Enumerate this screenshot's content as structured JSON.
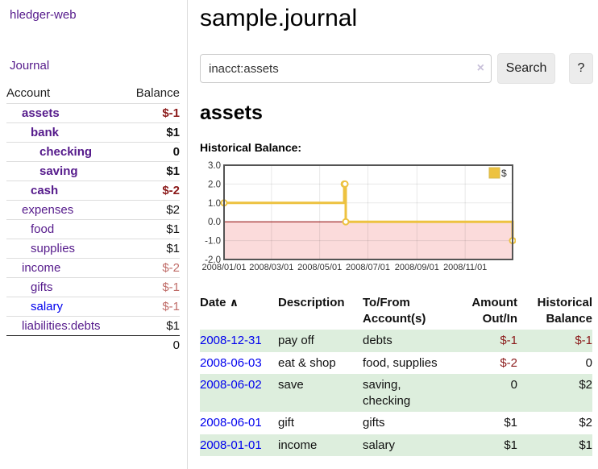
{
  "app": {
    "title": "hledger-web",
    "nav_journal": "Journal"
  },
  "sidebar": {
    "columns": {
      "account": "Account",
      "balance": "Balance"
    },
    "accounts": [
      {
        "name": "assets",
        "indent": 1,
        "balance": "$-1",
        "bold": true,
        "negative": true,
        "link": "visited"
      },
      {
        "name": "bank",
        "indent": 2,
        "balance": "$1",
        "bold": true,
        "negative": false,
        "link": "visited"
      },
      {
        "name": "checking",
        "indent": 3,
        "balance": "0",
        "bold": true,
        "negative": false,
        "link": "visited"
      },
      {
        "name": "saving",
        "indent": 3,
        "balance": "$1",
        "bold": true,
        "negative": false,
        "link": "visited"
      },
      {
        "name": "cash",
        "indent": 2,
        "balance": "$-2",
        "bold": true,
        "negative": true,
        "link": "visited"
      },
      {
        "name": "expenses",
        "indent": 1,
        "balance": "$2",
        "bold": false,
        "negative": false,
        "link": "visited"
      },
      {
        "name": "food",
        "indent": 2,
        "balance": "$1",
        "bold": false,
        "negative": false,
        "link": "visited"
      },
      {
        "name": "supplies",
        "indent": 2,
        "balance": "$1",
        "bold": false,
        "negative": false,
        "link": "visited"
      },
      {
        "name": "income",
        "indent": 1,
        "balance": "$-2",
        "bold": false,
        "negative": true,
        "link": "visited"
      },
      {
        "name": "gifts",
        "indent": 2,
        "balance": "$-1",
        "bold": false,
        "negative": true,
        "link": "visited"
      },
      {
        "name": "salary",
        "indent": 2,
        "balance": "$-1",
        "bold": false,
        "negative": true,
        "link": "unvisited"
      },
      {
        "name": "liabilities:debts",
        "indent": 1,
        "balance": "$1",
        "bold": false,
        "negative": false,
        "link": "visited"
      }
    ],
    "total": "0"
  },
  "header": {
    "title": "sample.journal"
  },
  "search": {
    "value": "inacct:assets",
    "clear_icon": "×",
    "search_button": "Search",
    "help_button": "?"
  },
  "account_page": {
    "heading": "assets",
    "chart_label": "Historical Balance:"
  },
  "chart_data": {
    "type": "line",
    "style": "step",
    "title": "Historical Balance:",
    "series": [
      {
        "name": "$",
        "color": "#edc240",
        "points": [
          [
            "2008-01-01",
            1
          ],
          [
            "2008-06-01",
            2
          ],
          [
            "2008-06-02",
            2
          ],
          [
            "2008-06-03",
            0
          ],
          [
            "2008-12-31",
            -1
          ]
        ]
      }
    ],
    "x_range": [
      "2008-01-01",
      "2008-12-31"
    ],
    "x_ticks": [
      {
        "date": "2008-01-01",
        "label": "2008/01/01"
      },
      {
        "date": "2008-03-01",
        "label": "2008/03/01"
      },
      {
        "date": "2008-05-01",
        "label": "2008/05/01"
      },
      {
        "date": "2008-07-01",
        "label": "2008/07/01"
      },
      {
        "date": "2008-09-01",
        "label": "2008/09/01"
      },
      {
        "date": "2008-11-01",
        "label": "2008/11/01"
      }
    ],
    "y_ticks": [
      {
        "v": 3,
        "label": "3.0"
      },
      {
        "v": 2,
        "label": "2.0"
      },
      {
        "v": 1,
        "label": "1.0"
      },
      {
        "v": 0,
        "label": "0.0"
      },
      {
        "v": -1,
        "label": "-1.0"
      },
      {
        "v": -2,
        "label": "-2.0"
      }
    ],
    "ylim": [
      -2,
      3
    ],
    "grid": true,
    "legend": {
      "label": "$",
      "position": "top-right",
      "swatch_color": "#edc240"
    },
    "negative_region_color": "#fbdbdb",
    "zero_line_color": "#8b0000",
    "frame_color": "#545454"
  },
  "register": {
    "sort_indicator": "∧",
    "columns": [
      "Date",
      "Description",
      "To/From Account(s)",
      "Amount Out/In",
      "Historical Balance"
    ],
    "rows": [
      {
        "date": "2008-12-31",
        "description": "pay off",
        "accounts": "debts",
        "amount": "$-1",
        "balance": "$-1"
      },
      {
        "date": "2008-06-03",
        "description": "eat & shop",
        "accounts": "food, supplies",
        "amount": "$-2",
        "balance": "0"
      },
      {
        "date": "2008-06-02",
        "description": "save",
        "accounts": "saving, checking",
        "amount": "0",
        "balance": "$2"
      },
      {
        "date": "2008-06-01",
        "description": "gift",
        "accounts": "gifts",
        "amount": "$1",
        "balance": "$2"
      },
      {
        "date": "2008-01-01",
        "description": "income",
        "accounts": "salary",
        "amount": "$1",
        "balance": "$1"
      }
    ]
  }
}
